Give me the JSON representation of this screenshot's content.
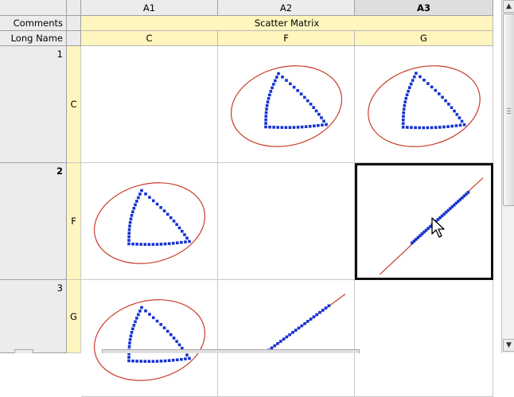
{
  "columns": [
    {
      "id": "A1",
      "selected": false
    },
    {
      "id": "A2",
      "selected": false
    },
    {
      "id": "A3",
      "selected": true
    }
  ],
  "header_rows": [
    {
      "label": "Comments",
      "value": "Scatter Matrix"
    },
    {
      "label": "Long Name",
      "values": [
        "C",
        "F",
        "G"
      ]
    }
  ],
  "rows": [
    {
      "number": "1",
      "var": "C",
      "selected": false
    },
    {
      "number": "2",
      "var": "F",
      "selected": true
    },
    {
      "number": "3",
      "var": "G",
      "selected": false
    }
  ],
  "plot_cells": [
    {
      "row": 1,
      "col": 2,
      "plot": "loop",
      "active": false
    },
    {
      "row": 1,
      "col": 3,
      "plot": "loop",
      "active": false
    },
    {
      "row": 2,
      "col": 1,
      "plot": "loop",
      "active": false
    },
    {
      "row": 2,
      "col": 3,
      "plot": "line",
      "active": true
    },
    {
      "row": 3,
      "col": 1,
      "plot": "loop",
      "active": false
    },
    {
      "row": 3,
      "col": 2,
      "plot": "line",
      "active": false
    }
  ],
  "colors": {
    "points": "#1432d2",
    "ellipse": "#c83c28",
    "fit_line": "#c83c28",
    "label_strip": "#fff5be"
  },
  "icons": {
    "cursor": "mouse-pointer-icon",
    "scroll_up": "triangle-up-icon",
    "scroll_down": "triangle-down-icon"
  }
}
